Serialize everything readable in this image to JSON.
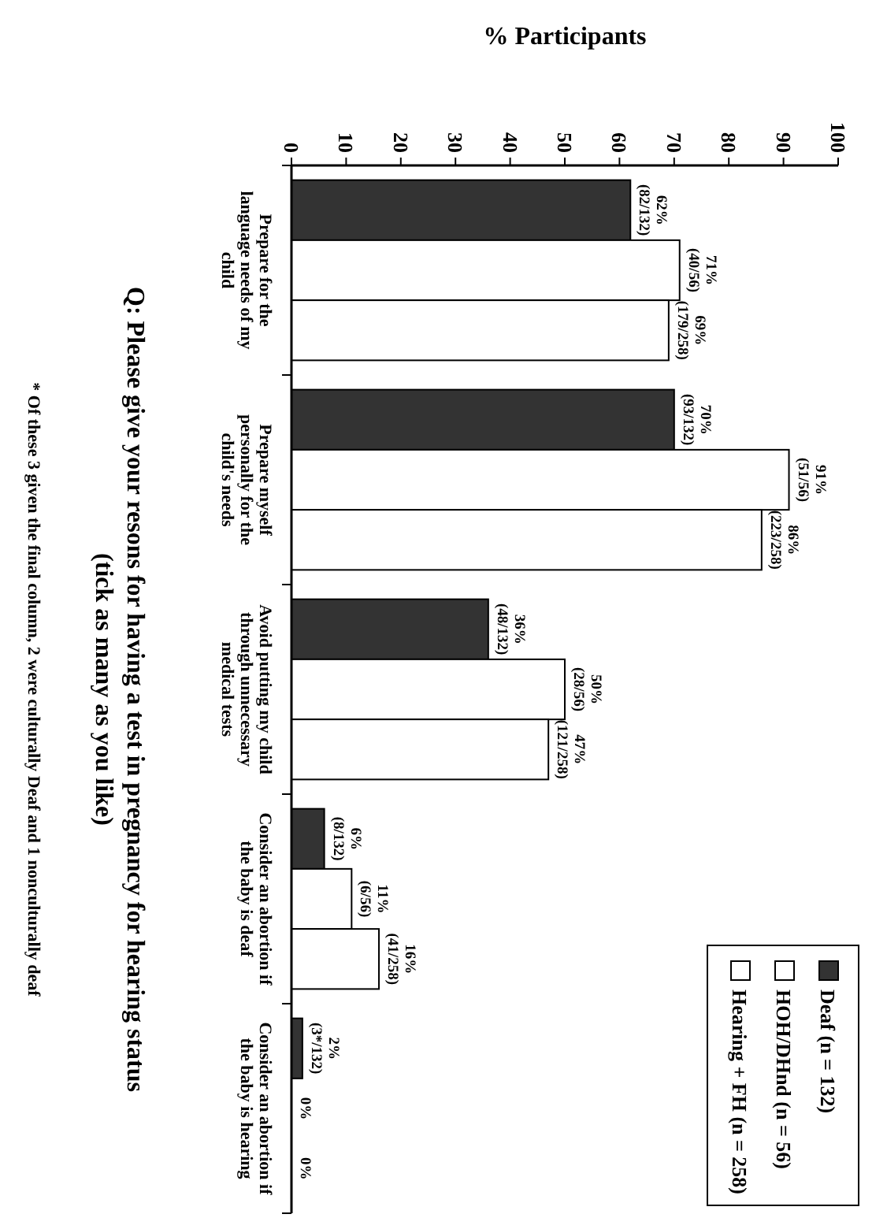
{
  "chart_data": {
    "type": "bar",
    "title": "Q: Please give your resons for having a test in pregnancy for hearing status (tick as many as you like)",
    "xlabel": "% Participants",
    "orientation": "horizontal",
    "annotations": [
      "* Of these 3 given the final column, 2 were culturally Deaf and 1 nonculturally deaf"
    ],
    "categories": [
      "Prepare for the language needs of my child",
      "Prepare myself personally for the child's needs",
      "Avoid putting my child through unnecessary medical tests",
      "Consider an abortion if the baby is deaf",
      "Consider an abortion if the baby is hearing"
    ],
    "series": [
      {
        "name": "Deaf (n = 132)",
        "color": "#333333",
        "values": [
          62,
          70,
          36,
          6,
          2
        ],
        "value_labels": [
          "62%\n(82/132)",
          "70%\n(93/132)",
          "36%\n(48/132)",
          "6%\n(8/132)",
          "2%\n(3*/132)"
        ]
      },
      {
        "name": "HOH/DHnd (n = 56)",
        "color": "#ffffff",
        "values": [
          71,
          91,
          50,
          11,
          0
        ],
        "value_labels": [
          "71%\n(40/56)",
          "91%\n(51/56)",
          "50%\n(28/56)",
          "11%\n(6/56)",
          "0%"
        ]
      },
      {
        "name": "Hearing + FH (n = 258)",
        "color": "#ffffff",
        "values": [
          69,
          86,
          47,
          16,
          0
        ],
        "value_labels": [
          "69%\n(179/258)",
          "86%\n(223/258)",
          "47%\n(121/258)",
          "16%\n(41/258)",
          "0%"
        ]
      }
    ],
    "xlim": [
      0,
      100
    ],
    "xticks": [
      0,
      10,
      20,
      30,
      40,
      50,
      60,
      70,
      80,
      90,
      100
    ],
    "legend": "bottom right"
  }
}
